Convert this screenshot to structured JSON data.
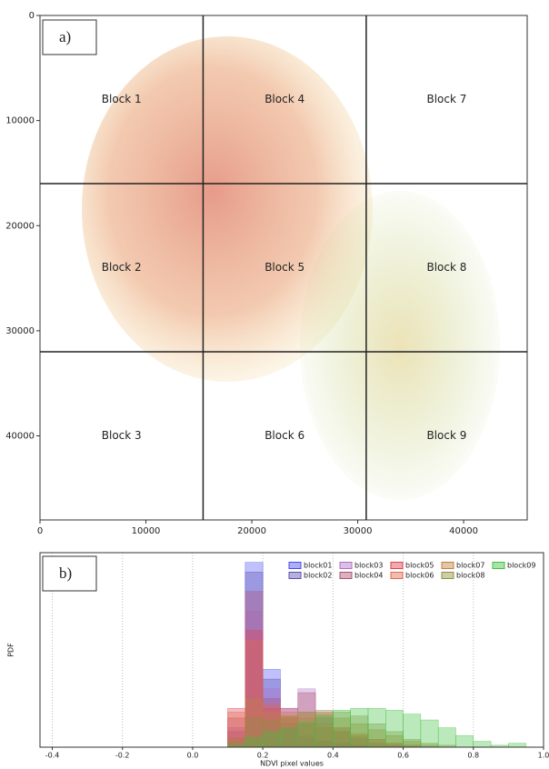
{
  "chart_data": [
    {
      "type": "map_blocks",
      "panel_label": "a)",
      "xlim": [
        0,
        46000
      ],
      "ylim": [
        0,
        48000
      ],
      "y_inverted": true,
      "xticks": [
        0,
        10000,
        20000,
        30000,
        40000
      ],
      "yticks": [
        0,
        10000,
        20000,
        30000,
        40000
      ],
      "block_edges_x": [
        15400,
        30800
      ],
      "block_edges_y": [
        16000,
        32000
      ],
      "blocks": [
        "Block  1",
        "Block  2",
        "Block  3",
        "Block  4",
        "Block  5",
        "Block  6",
        "Block  7",
        "Block  8",
        "Block  9"
      ]
    },
    {
      "type": "histogram",
      "panel_label": "b)",
      "x_label": "NDVI pixel values",
      "y_label": "PDF",
      "xlim": [
        -0.435,
        1.0
      ],
      "ylim": [
        0,
        100
      ],
      "grid": true,
      "legend": "upper right",
      "xticks": [
        -0.4,
        -0.2,
        {
          "value": 0,
          "label": "0.0"
        },
        0.2,
        0.4,
        0.6,
        0.8,
        {
          "value": 1,
          "label": "1.0"
        }
      ],
      "bins": [
        0.1,
        0.15,
        0.2,
        0.25,
        0.3,
        0.35,
        0.4,
        0.45,
        0.5,
        0.55,
        0.6,
        0.65,
        0.7,
        0.75,
        0.8,
        0.85,
        0.9,
        0.95,
        1.0
      ],
      "series": [
        {
          "name": "block01",
          "color": "#4a4af0",
          "values": [
            5,
            95,
            40,
            10,
            5,
            3,
            2,
            1,
            0,
            0,
            0,
            0,
            0,
            0,
            0,
            0,
            0,
            0
          ]
        },
        {
          "name": "block02",
          "color": "#5a4fb5",
          "values": [
            8,
            90,
            35,
            12,
            6,
            3,
            2,
            1,
            0,
            0,
            0,
            0,
            0,
            0,
            0,
            0,
            0,
            0
          ]
        },
        {
          "name": "block03",
          "color": "#b070c8",
          "values": [
            10,
            70,
            30,
            20,
            30,
            15,
            8,
            4,
            2,
            1,
            0,
            0,
            0,
            0,
            0,
            0,
            0,
            0
          ]
        },
        {
          "name": "block04",
          "color": "#b05070",
          "values": [
            15,
            80,
            25,
            20,
            28,
            18,
            10,
            5,
            2,
            1,
            0,
            0,
            0,
            0,
            0,
            0,
            0,
            0
          ]
        },
        {
          "name": "block05",
          "color": "#e04050",
          "values": [
            20,
            60,
            20,
            15,
            12,
            10,
            8,
            6,
            4,
            2,
            1,
            0,
            0,
            0,
            0,
            0,
            0,
            0
          ]
        },
        {
          "name": "block06",
          "color": "#e06a50",
          "values": [
            18,
            55,
            22,
            18,
            15,
            12,
            10,
            7,
            4,
            2,
            1,
            0,
            0,
            0,
            0,
            0,
            0,
            0
          ]
        },
        {
          "name": "block07",
          "color": "#c08040",
          "values": [
            5,
            25,
            18,
            16,
            18,
            17,
            15,
            12,
            9,
            6,
            3,
            1,
            0,
            0,
            0,
            0,
            0,
            0
          ]
        },
        {
          "name": "block08",
          "color": "#909040",
          "values": [
            3,
            15,
            14,
            16,
            18,
            19,
            18,
            16,
            12,
            8,
            4,
            2,
            1,
            0,
            0,
            0,
            0,
            0
          ]
        },
        {
          "name": "block09",
          "color": "#40c040",
          "values": [
            1,
            5,
            8,
            10,
            13,
            16,
            19,
            20,
            20,
            19,
            17,
            14,
            10,
            6,
            3,
            1,
            2,
            0
          ]
        }
      ]
    }
  ]
}
